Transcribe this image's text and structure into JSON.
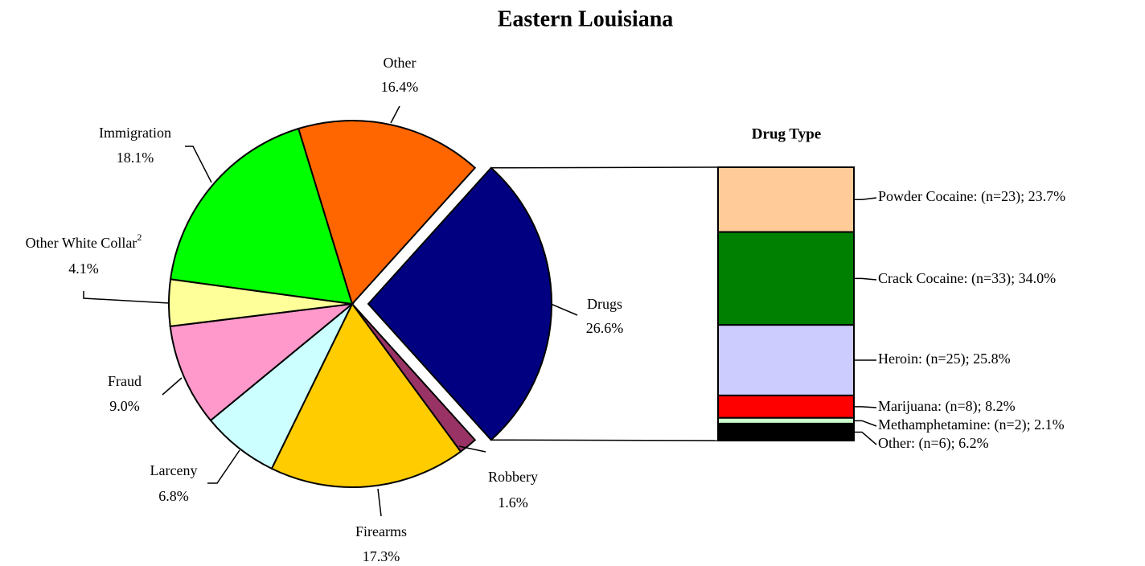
{
  "chart_data": [
    {
      "type": "pie",
      "title": "Eastern Louisiana",
      "categories": [
        "Drugs",
        "Robbery",
        "Firearms",
        "Larceny",
        "Fraud",
        "Other White Collar",
        "Immigration",
        "Other"
      ],
      "footnotes": [
        null,
        null,
        null,
        null,
        null,
        "2",
        null,
        null
      ],
      "values": [
        26.6,
        1.6,
        17.3,
        6.8,
        9.0,
        4.1,
        18.1,
        16.4
      ],
      "value_labels": [
        "26.6%",
        "1.6%",
        "17.3%",
        "6.8%",
        "9.0%",
        "4.1%",
        "18.1%",
        "16.4%"
      ],
      "colors": [
        "#000080",
        "#993366",
        "#ffcc00",
        "#ccffff",
        "#ff99cc",
        "#ffff99",
        "#00ff00",
        "#ff6600"
      ],
      "exploded": 0
    },
    {
      "type": "stacked_bar",
      "title": "Drug Type",
      "values": [
        23.7,
        34.0,
        25.8,
        8.2,
        2.1,
        6.2
      ],
      "value_labels": [
        "Powder Cocaine: (n=23); 23.7%",
        "Crack Cocaine: (n=33); 34.0%",
        "Heroin: (n=25); 25.8%",
        "Marijuana: (n=8); 8.2%",
        "Methamphetamine: (n=2); 2.1%",
        "Other: (n=6); 6.2%"
      ],
      "colors": [
        "#ffcc99",
        "#008000",
        "#ccccff",
        "#ff0000",
        "#ccffcc",
        "#000000"
      ]
    }
  ]
}
